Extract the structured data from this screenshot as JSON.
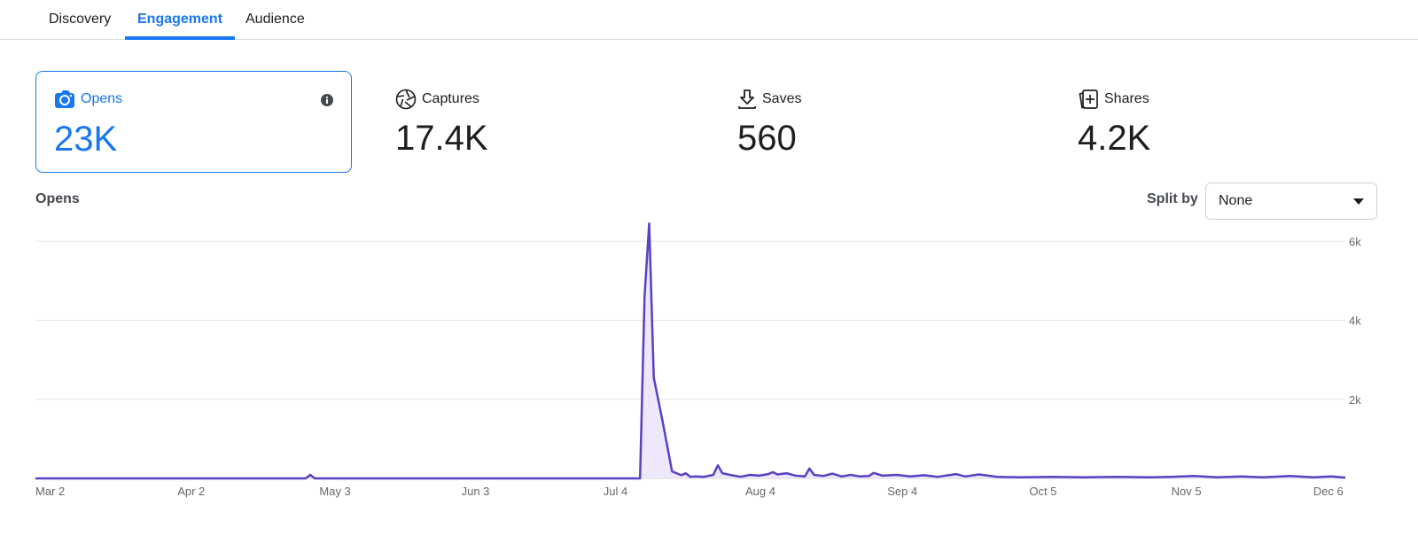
{
  "tabs": [
    {
      "label": "Discovery",
      "active": false
    },
    {
      "label": "Engagement",
      "active": true
    },
    {
      "label": "Audience",
      "active": false
    }
  ],
  "metrics": [
    {
      "label": "Opens",
      "value": "23K",
      "icon": "camera-icon",
      "selected": true
    },
    {
      "label": "Captures",
      "value": "17.4K",
      "icon": "aperture-icon",
      "selected": false
    },
    {
      "label": "Saves",
      "value": "560",
      "icon": "download-icon",
      "selected": false
    },
    {
      "label": "Shares",
      "value": "4.2K",
      "icon": "share-cards-icon",
      "selected": false
    }
  ],
  "chart_header": {
    "title": "Opens",
    "split_label": "Split by",
    "split_value": "None"
  },
  "colors": {
    "accent": "#1877f2",
    "series_line": "#5b3fc4",
    "series_fill": "#ede8fb"
  },
  "chart_data": {
    "type": "area",
    "title": "Opens",
    "xlabel": "",
    "ylabel": "",
    "ylim": [
      0,
      6500
    ],
    "yticks": [
      {
        "label": "2k",
        "value": 2000
      },
      {
        "label": "4k",
        "value": 4000
      },
      {
        "label": "6k",
        "value": 6000
      }
    ],
    "xticks": [
      {
        "label": "Mar 2",
        "date": "2023-03-02"
      },
      {
        "label": "Apr 2",
        "date": "2023-04-02"
      },
      {
        "label": "May 3",
        "date": "2023-05-03"
      },
      {
        "label": "Jun 3",
        "date": "2023-06-03"
      },
      {
        "label": "Jul 4",
        "date": "2023-07-04"
      },
      {
        "label": "Aug 4",
        "date": "2023-08-04"
      },
      {
        "label": "Sep 4",
        "date": "2023-09-04"
      },
      {
        "label": "Oct 5",
        "date": "2023-10-05"
      },
      {
        "label": "Nov 5",
        "date": "2023-11-05"
      },
      {
        "label": "Dec 6",
        "date": "2023-12-06"
      }
    ],
    "grid": true,
    "series": [
      {
        "points": [
          [
            "2023-03-02",
            0
          ],
          [
            "2023-04-30",
            0
          ],
          [
            "2023-05-01",
            90
          ],
          [
            "2023-05-02",
            0
          ],
          [
            "2023-07-12",
            0
          ],
          [
            "2023-07-13",
            4600
          ],
          [
            "2023-07-14",
            6450
          ],
          [
            "2023-07-15",
            2550
          ],
          [
            "2023-07-17",
            1400
          ],
          [
            "2023-07-19",
            180
          ],
          [
            "2023-07-21",
            80
          ],
          [
            "2023-07-22",
            130
          ],
          [
            "2023-07-23",
            40
          ],
          [
            "2023-07-24",
            50
          ],
          [
            "2023-07-26",
            40
          ],
          [
            "2023-07-28",
            90
          ],
          [
            "2023-07-29",
            330
          ],
          [
            "2023-07-30",
            130
          ],
          [
            "2023-08-01",
            80
          ],
          [
            "2023-08-03",
            40
          ],
          [
            "2023-08-05",
            90
          ],
          [
            "2023-08-07",
            70
          ],
          [
            "2023-08-09",
            110
          ],
          [
            "2023-08-10",
            160
          ],
          [
            "2023-08-11",
            100
          ],
          [
            "2023-08-13",
            130
          ],
          [
            "2023-08-15",
            70
          ],
          [
            "2023-08-17",
            50
          ],
          [
            "2023-08-18",
            250
          ],
          [
            "2023-08-19",
            90
          ],
          [
            "2023-08-21",
            60
          ],
          [
            "2023-08-23",
            120
          ],
          [
            "2023-08-25",
            50
          ],
          [
            "2023-08-27",
            90
          ],
          [
            "2023-08-29",
            50
          ],
          [
            "2023-08-31",
            60
          ],
          [
            "2023-09-01",
            140
          ],
          [
            "2023-09-03",
            70
          ],
          [
            "2023-09-06",
            90
          ],
          [
            "2023-09-09",
            50
          ],
          [
            "2023-09-12",
            80
          ],
          [
            "2023-09-15",
            40
          ],
          [
            "2023-09-19",
            110
          ],
          [
            "2023-09-21",
            50
          ],
          [
            "2023-09-24",
            100
          ],
          [
            "2023-09-28",
            40
          ],
          [
            "2023-10-03",
            30
          ],
          [
            "2023-10-10",
            40
          ],
          [
            "2023-10-17",
            30
          ],
          [
            "2023-10-24",
            40
          ],
          [
            "2023-10-31",
            30
          ],
          [
            "2023-11-05",
            40
          ],
          [
            "2023-11-10",
            60
          ],
          [
            "2023-11-15",
            30
          ],
          [
            "2023-11-20",
            50
          ],
          [
            "2023-11-25",
            30
          ],
          [
            "2023-12-01",
            60
          ],
          [
            "2023-12-06",
            30
          ],
          [
            "2023-12-10",
            50
          ],
          [
            "2023-12-13",
            20
          ]
        ]
      }
    ]
  }
}
